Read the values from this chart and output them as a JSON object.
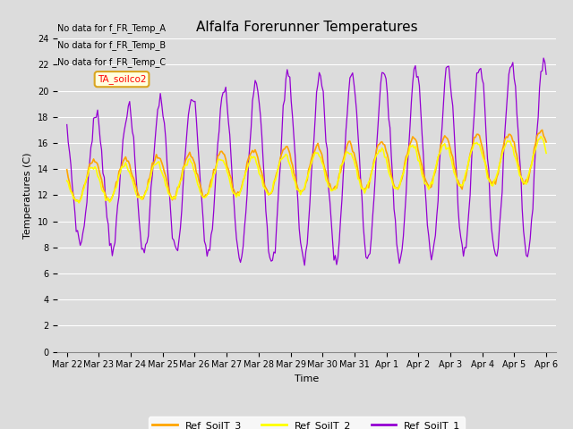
{
  "title": "Alfalfa Forerunner Temperatures",
  "xlabel": "Time",
  "ylabel": "Temperatures (C)",
  "ylim": [
    0,
    24
  ],
  "yticks": [
    0,
    2,
    4,
    6,
    8,
    10,
    12,
    14,
    16,
    18,
    20,
    22,
    24
  ],
  "color_soil3": "#FFA500",
  "color_soil2": "#FFFF00",
  "color_soil1": "#9400D3",
  "legend_labels": [
    "Ref_SoilT_3",
    "Ref_SoilT_2",
    "Ref_SoilT_1"
  ],
  "no_data_texts": [
    "No data for f_FR_Temp_A",
    "No data for f_FR_Temp_B",
    "No data for f_FR_Temp_C"
  ],
  "tooltip_text": "TA_soilco2",
  "bg_color": "#DCDCDC",
  "fig_color": "#DCDCDC",
  "grid_color": "#FFFFFF",
  "tick_label_size": 7,
  "title_fontsize": 11,
  "ylabel_fontsize": 8,
  "xlabel_fontsize": 8
}
